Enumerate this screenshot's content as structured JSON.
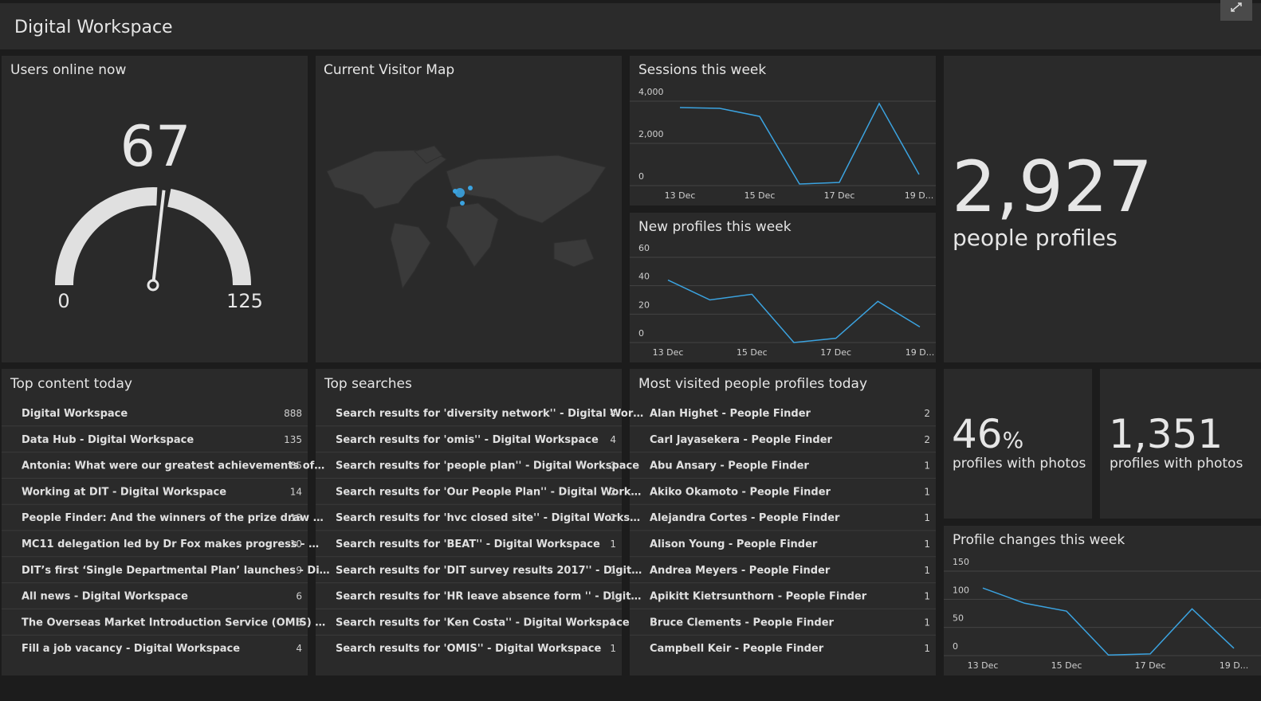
{
  "header": {
    "title": "Digital Workspace"
  },
  "users_online": {
    "title": "Users online now",
    "value": 67,
    "min": 0,
    "max": 125
  },
  "visitor_map": {
    "title": "Current Visitor Map"
  },
  "sessions": {
    "title": "Sessions this week",
    "type": "line",
    "color": "#3ba3e0",
    "categories": [
      "13 Dec",
      null,
      "15 Dec",
      null,
      "17 Dec",
      null,
      "19 D..."
    ],
    "values": [
      3700,
      3660,
      3280,
      75,
      150,
      3890,
      530
    ],
    "ylim": [
      0,
      4000
    ],
    "yticks": [
      0,
      {
        "value": 2000,
        "label": "2,000"
      },
      {
        "value": 4000,
        "label": "4,000"
      }
    ],
    "grid": true
  },
  "new_profiles": {
    "title": "New profiles this week",
    "type": "line",
    "color": "#3ba3e0",
    "categories": [
      "13 Dec",
      null,
      "15 Dec",
      null,
      "17 Dec",
      null,
      "19 D..."
    ],
    "values": [
      44,
      30,
      34,
      0,
      3,
      29,
      11
    ],
    "ylim": [
      0,
      60
    ],
    "yticks": [
      0,
      20,
      40,
      60
    ],
    "grid": true
  },
  "people_profiles": {
    "value": "2,927",
    "label": "people profiles"
  },
  "top_content": {
    "title": "Top content today",
    "rows": [
      {
        "label": "Digital Workspace",
        "count": 888
      },
      {
        "label": "Data Hub - Digital Workspace",
        "count": 135
      },
      {
        "label": "Antonia: What were our greatest achievements of…",
        "count": 85
      },
      {
        "label": "Working at DIT - Digital Workspace",
        "count": 14
      },
      {
        "label": "People Finder: And the winners of the prize draw …",
        "count": 13
      },
      {
        "label": "MC11 delegation led by Dr Fox makes progress - …",
        "count": 10
      },
      {
        "label": "DIT’s first ‘Single Departmental Plan’ launches - Di…",
        "count": 9
      },
      {
        "label": "All news - Digital Workspace",
        "count": 6
      },
      {
        "label": "The Overseas Market Introduction Service (OMIS) …",
        "count": 5
      },
      {
        "label": "Fill a job vacancy - Digital Workspace",
        "count": 4
      }
    ]
  },
  "top_searches": {
    "title": "Top searches",
    "rows": [
      {
        "label": "Search results for 'diversity network'' - Digital Wor…",
        "count": 4
      },
      {
        "label": "Search results for 'omis'' - Digital Workspace",
        "count": 4
      },
      {
        "label": "Search results for 'people plan'' - Digital Workspace",
        "count": 3
      },
      {
        "label": "Search results for 'Our People Plan'' - Digital Work…",
        "count": 2
      },
      {
        "label": "Search results for 'hvc closed site'' - Digital Works…",
        "count": 2
      },
      {
        "label": "Search results for 'BEAT'' - Digital Workspace",
        "count": 1
      },
      {
        "label": "Search results for 'DIT survey results 2017'' - Digit…",
        "count": 1
      },
      {
        "label": "Search results for 'HR leave absence form '' - Digit…",
        "count": 1
      },
      {
        "label": "Search results for 'Ken Costa'' - Digital Workspace",
        "count": 1
      },
      {
        "label": "Search results for 'OMIS'' - Digital Workspace",
        "count": 1
      }
    ]
  },
  "visited_profiles": {
    "title": "Most visited people profiles today",
    "rows": [
      {
        "label": "Alan Highet - People Finder",
        "count": 2
      },
      {
        "label": "Carl Jayasekera - People Finder",
        "count": 2
      },
      {
        "label": "Abu Ansary - People Finder",
        "count": 1
      },
      {
        "label": "Akiko Okamoto - People Finder",
        "count": 1
      },
      {
        "label": "Alejandra Cortes - People Finder",
        "count": 1
      },
      {
        "label": "Alison Young - People Finder",
        "count": 1
      },
      {
        "label": "Andrea Meyers - People Finder",
        "count": 1
      },
      {
        "label": "Apikitt Kietrsunthorn - People Finder",
        "count": 1
      },
      {
        "label": "Bruce Clements - People Finder",
        "count": 1
      },
      {
        "label": "Campbell Keir - People Finder",
        "count": 1
      }
    ]
  },
  "photos_percent": {
    "value": 46,
    "unit": "%",
    "label": "profiles with photos"
  },
  "photos_count": {
    "value": "1,351",
    "label": "profiles with photos"
  },
  "profile_changes": {
    "title": "Profile changes this week",
    "type": "line",
    "color": "#3ba3e0",
    "categories": [
      "13 Dec",
      null,
      "15 Dec",
      null,
      "17 Dec",
      null,
      "19 D..."
    ],
    "values": [
      120,
      93,
      79,
      1,
      3,
      83,
      13
    ],
    "ylim": [
      0,
      150
    ],
    "yticks": [
      0,
      50,
      100,
      150
    ],
    "grid": true
  }
}
